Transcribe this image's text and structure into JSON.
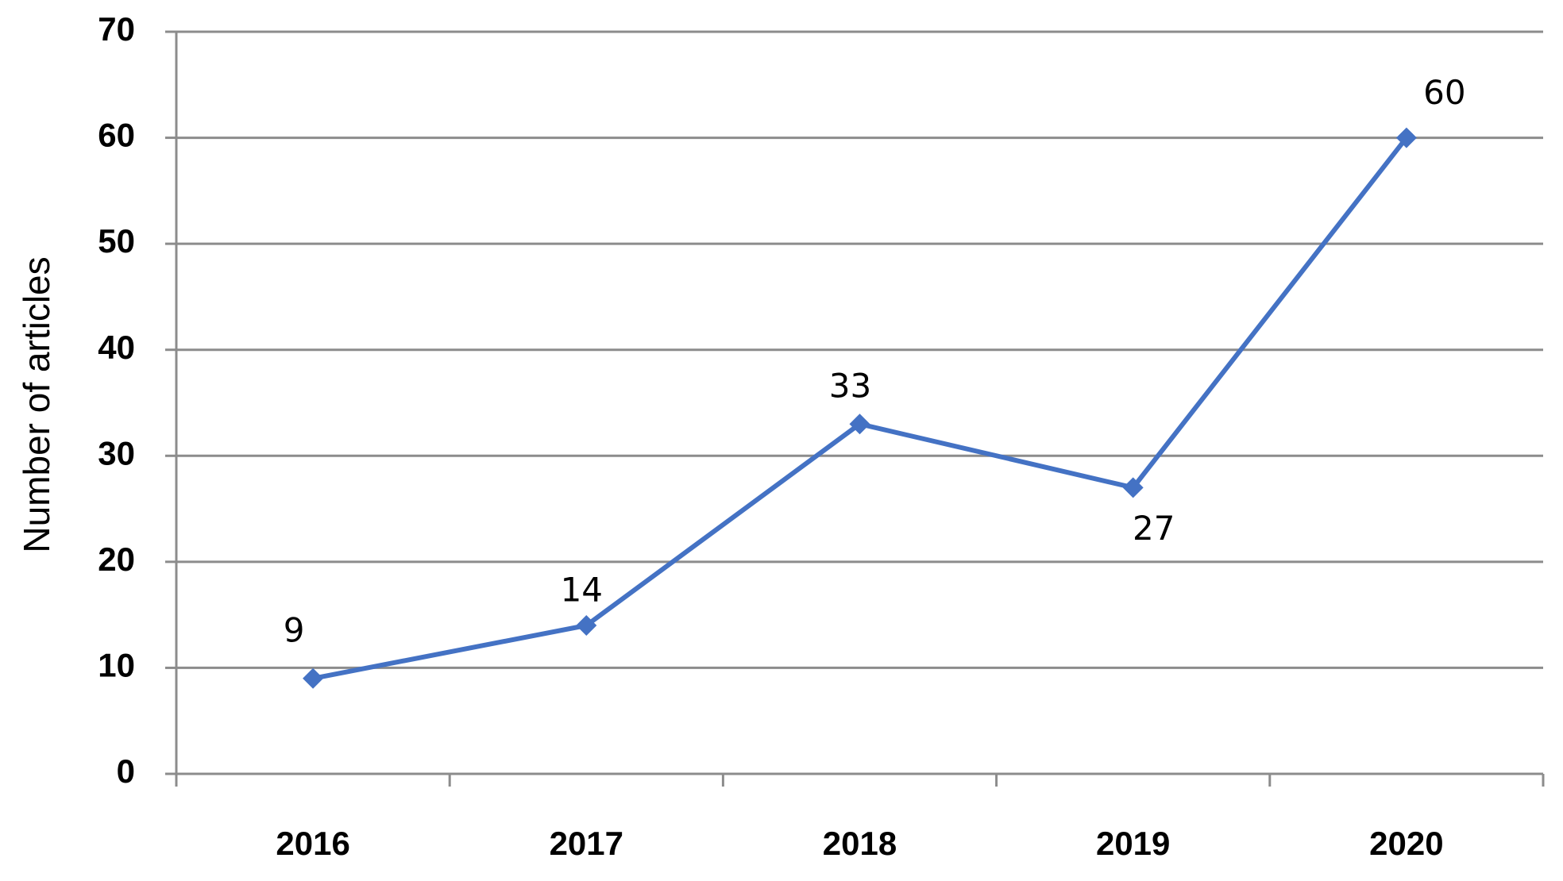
{
  "chart_data": {
    "type": "line",
    "y_label": "Number of articles",
    "categories": [
      "2016",
      "2017",
      "2018",
      "2019",
      "2020"
    ],
    "values": [
      9,
      14,
      33,
      27,
      60
    ],
    "color": "#4472c4",
    "ylim": [
      0,
      70
    ],
    "yticks": [
      0,
      10,
      20,
      30,
      40,
      50,
      60,
      70
    ],
    "grid": true
  }
}
